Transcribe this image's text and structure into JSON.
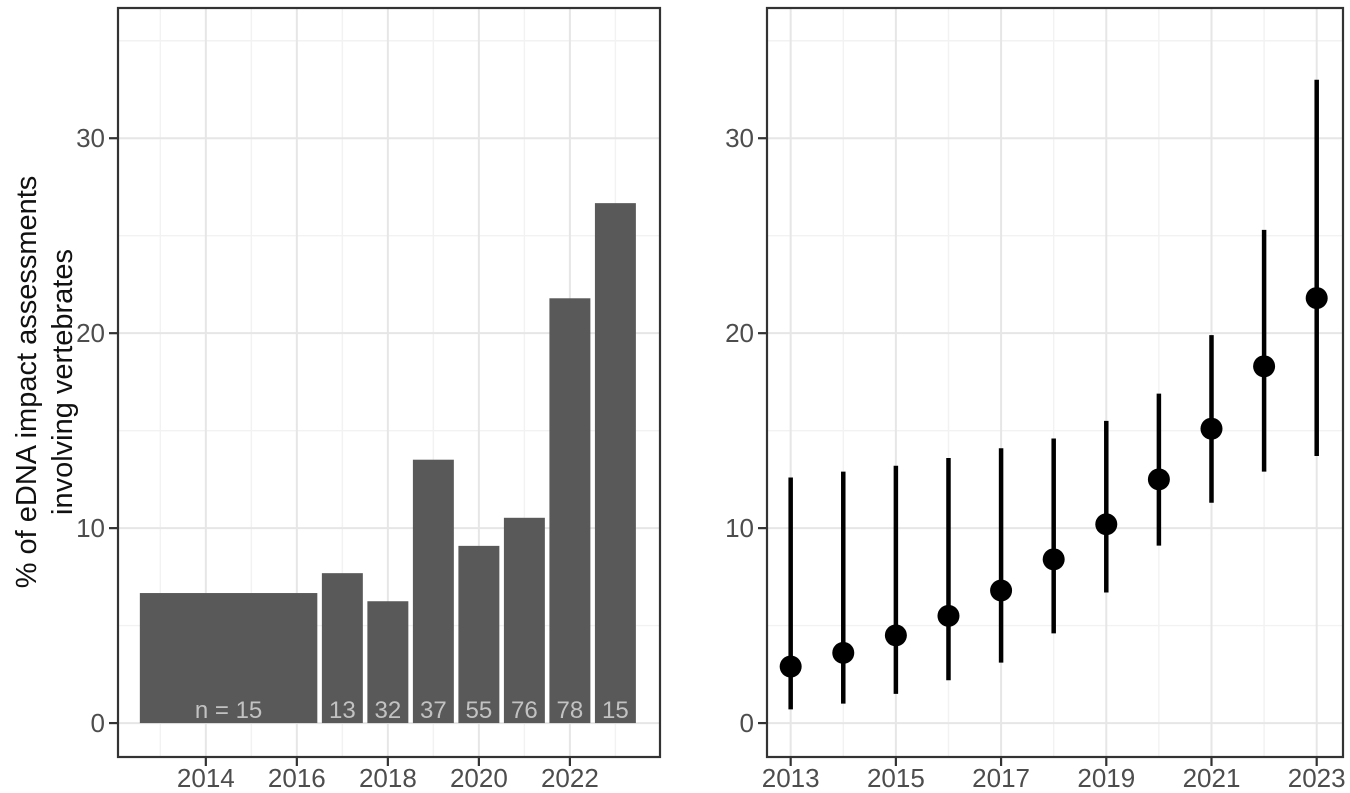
{
  "figure": {
    "ylabel_line1": "% of eDNA impact assessments",
    "ylabel_line2": "involving vertebrates"
  },
  "colors": {
    "background": "#ffffff",
    "panel_background": "#ffffff",
    "panel_border": "#333333",
    "grid_major": "#e6e6e6",
    "grid_minor": "#f2f2f2",
    "bar_fill": "#595959",
    "bar_label": "#c2c2c2",
    "axis_text": "#4d4d4d",
    "axis_title": "#111111",
    "tick_mark": "#333333",
    "point_color": "#000000"
  },
  "chart_data": [
    {
      "type": "bar",
      "panel": "left",
      "title": "",
      "xlabel": "",
      "ylabel": "% of eDNA impact assessments involving vertebrates",
      "grid": true,
      "xlim": [
        2012.07,
        2023.98
      ],
      "ylim": [
        -1.74,
        36.68
      ],
      "x_ticks": [
        2014,
        2016,
        2018,
        2020,
        2022
      ],
      "x_minor": [
        2013,
        2015,
        2017,
        2019,
        2021,
        2023
      ],
      "y_ticks": [
        0,
        10,
        20,
        30
      ],
      "y_minor": [
        5,
        15,
        25,
        35
      ],
      "bars": [
        {
          "period": "2013-2016",
          "x0": 2012.55,
          "x1": 2016.45,
          "value": 6.67,
          "n": 15,
          "n_label": "n = 15"
        },
        {
          "period": "2017",
          "x0": 2016.55,
          "x1": 2017.45,
          "value": 7.69,
          "n": 13,
          "n_label": "13"
        },
        {
          "period": "2018",
          "x0": 2017.55,
          "x1": 2018.45,
          "value": 6.25,
          "n": 32,
          "n_label": "32"
        },
        {
          "period": "2019",
          "x0": 2018.55,
          "x1": 2019.45,
          "value": 13.51,
          "n": 37,
          "n_label": "37"
        },
        {
          "period": "2020",
          "x0": 2019.55,
          "x1": 2020.45,
          "value": 9.09,
          "n": 55,
          "n_label": "55"
        },
        {
          "period": "2021",
          "x0": 2020.55,
          "x1": 2021.45,
          "value": 10.53,
          "n": 76,
          "n_label": "76"
        },
        {
          "period": "2022",
          "x0": 2021.55,
          "x1": 2022.45,
          "value": 21.79,
          "n": 78,
          "n_label": "78"
        },
        {
          "period": "2023",
          "x0": 2022.55,
          "x1": 2023.45,
          "value": 26.67,
          "n": 15,
          "n_label": "15"
        }
      ]
    },
    {
      "type": "scatter",
      "panel": "right",
      "title": "",
      "xlabel": "",
      "ylabel": "",
      "grid": true,
      "error_bars": true,
      "xlim": [
        2012.55,
        2023.5
      ],
      "ylim": [
        -1.74,
        36.68
      ],
      "x_ticks": [
        2013,
        2015,
        2017,
        2019,
        2021,
        2023
      ],
      "x_minor": [
        2014,
        2016,
        2018,
        2020,
        2022
      ],
      "y_ticks": [
        0,
        10,
        20,
        30
      ],
      "y_minor": [
        5,
        15,
        25,
        35
      ],
      "points": [
        {
          "x": 2013,
          "y": 2.9,
          "ymin": 0.7,
          "ymax": 12.6
        },
        {
          "x": 2014,
          "y": 3.6,
          "ymin": 1.0,
          "ymax": 12.9
        },
        {
          "x": 2015,
          "y": 4.5,
          "ymin": 1.5,
          "ymax": 13.2
        },
        {
          "x": 2016,
          "y": 5.5,
          "ymin": 2.2,
          "ymax": 13.6
        },
        {
          "x": 2017,
          "y": 6.8,
          "ymin": 3.1,
          "ymax": 14.1
        },
        {
          "x": 2018,
          "y": 8.4,
          "ymin": 4.6,
          "ymax": 14.6
        },
        {
          "x": 2019,
          "y": 10.2,
          "ymin": 6.7,
          "ymax": 15.5
        },
        {
          "x": 2020,
          "y": 12.5,
          "ymin": 9.1,
          "ymax": 16.9
        },
        {
          "x": 2021,
          "y": 15.1,
          "ymin": 11.3,
          "ymax": 19.9
        },
        {
          "x": 2022,
          "y": 18.3,
          "ymin": 12.9,
          "ymax": 25.3
        },
        {
          "x": 2023,
          "y": 21.8,
          "ymin": 13.7,
          "ymax": 33.0
        }
      ]
    }
  ]
}
